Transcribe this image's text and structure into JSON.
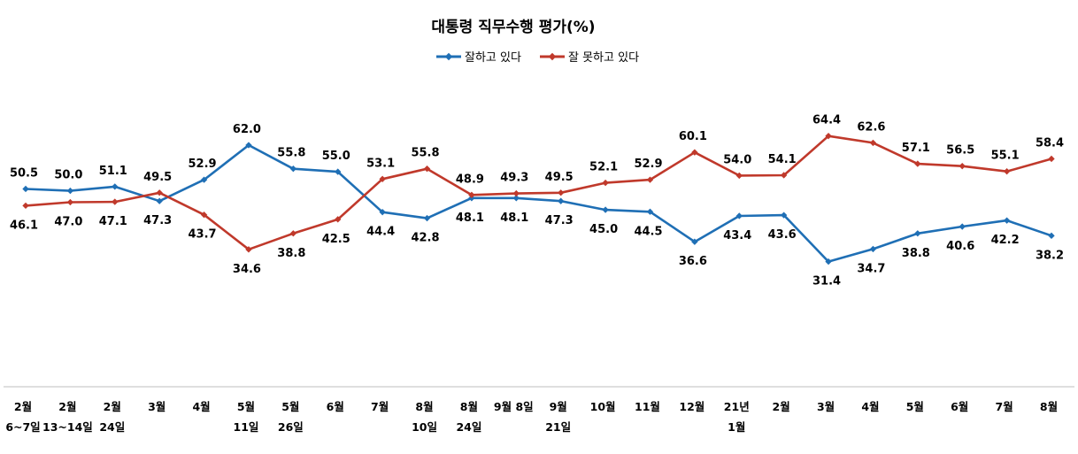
{
  "chart_data": {
    "type": "line",
    "title": "대통령 직무수행 평가(%)",
    "categories": [
      [
        "2월",
        "6~7일"
      ],
      [
        "2월",
        "13~14일"
      ],
      [
        "2월",
        "24일"
      ],
      [
        "3월"
      ],
      [
        "4월"
      ],
      [
        "5월",
        "11일"
      ],
      [
        "5월",
        "26일"
      ],
      [
        "6월"
      ],
      [
        "7월"
      ],
      [
        "8월",
        "10일"
      ],
      [
        "8월",
        "24일"
      ],
      [
        "9월 8일"
      ],
      [
        "9월",
        "21일"
      ],
      [
        "10월"
      ],
      [
        "11월"
      ],
      [
        "12월"
      ],
      [
        "21년",
        "1월"
      ],
      [
        "2월"
      ],
      [
        "3월"
      ],
      [
        "4월"
      ],
      [
        "5월"
      ],
      [
        "6월"
      ],
      [
        "7월"
      ],
      [
        "8월"
      ]
    ],
    "series": [
      {
        "name": "잘하고 있다",
        "color": "#1f6fb5",
        "values": [
          50.5,
          50.0,
          51.1,
          47.3,
          52.9,
          62.0,
          55.8,
          55.0,
          44.4,
          42.8,
          48.1,
          48.1,
          47.3,
          45.0,
          44.5,
          36.6,
          43.4,
          43.6,
          31.4,
          34.7,
          38.8,
          40.6,
          42.2,
          38.2
        ],
        "labels": [
          "50.5",
          "50.0",
          "51.1",
          "47.3",
          "52.9",
          "62.0",
          "55.8",
          "55.0",
          "44.4",
          "42.8",
          "48.1",
          "48.1",
          "47.3",
          "45.0",
          "44.5",
          "36.6",
          "43.4",
          "43.6",
          "31.4",
          "34.7",
          "38.8",
          "40.6",
          "42.2",
          "38.2"
        ]
      },
      {
        "name": "잘 못하고 있다",
        "color": "#c0392b",
        "values": [
          46.1,
          47.0,
          47.1,
          49.5,
          43.7,
          34.6,
          38.8,
          42.5,
          53.1,
          55.8,
          48.9,
          49.3,
          49.5,
          52.1,
          52.9,
          60.1,
          54.0,
          54.1,
          64.4,
          62.6,
          57.1,
          56.5,
          55.1,
          58.4
        ],
        "labels": [
          "46.1",
          "47.0",
          "47.1",
          "49.5",
          "43.7",
          "34.6",
          "38.8",
          "42.5",
          "53.1",
          "55.8",
          "48.9",
          "49.3",
          "49.5",
          "52.1",
          "52.9",
          "60.1",
          "54.0",
          "54.1",
          "64.4",
          "62.6",
          "57.1",
          "56.5",
          "55.1",
          "58.4"
        ]
      }
    ],
    "legend_position": "top-center",
    "grid": false,
    "xlabel": "",
    "ylabel": ""
  }
}
